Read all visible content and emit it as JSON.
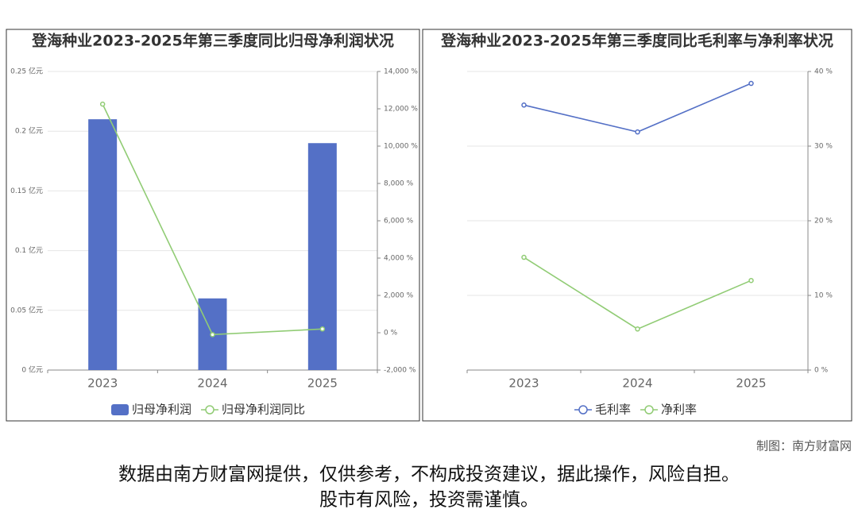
{
  "chart_data": [
    {
      "type": "bar",
      "title": "登海种业2023-2025年第三季度同比归母净利润状况",
      "categories": [
        "2023",
        "2024",
        "2025"
      ],
      "series": [
        {
          "name": "归母净利润",
          "type": "bar",
          "color": "#5470c6",
          "values": [
            0.21,
            0.06,
            0.19
          ]
        },
        {
          "name": "归母净利润同比",
          "type": "line",
          "axis": "y2",
          "color": "#91cc75",
          "values": [
            12250,
            -100,
            200
          ]
        }
      ],
      "ylim": [
        0,
        0.25
      ],
      "yticks": [
        {
          "value": 0,
          "label": "0 亿元"
        },
        {
          "value": 0.05,
          "label": "0.05 亿元"
        },
        {
          "value": 0.1,
          "label": "0.1 亿元"
        },
        {
          "value": 0.15,
          "label": "0.15 亿元"
        },
        {
          "value": 0.2,
          "label": "0.2 亿元"
        },
        {
          "value": 0.25,
          "label": "0.25 亿元"
        }
      ],
      "y2lim": [
        -2000,
        14000
      ],
      "y2ticks": [
        {
          "value": -2000,
          "label": "-2,000 %"
        },
        {
          "value": 0,
          "label": "0 %"
        },
        {
          "value": 2000,
          "label": "2,000 %"
        },
        {
          "value": 4000,
          "label": "4,000 %"
        },
        {
          "value": 6000,
          "label": "6,000 %"
        },
        {
          "value": 8000,
          "label": "8,000 %"
        },
        {
          "value": 10000,
          "label": "10,000 %"
        },
        {
          "value": 12000,
          "label": "12,000 %"
        },
        {
          "value": 14000,
          "label": "14,000 %"
        }
      ],
      "grid": true,
      "legend": "bottom"
    },
    {
      "type": "line",
      "title": "登海种业2023-2025年第三季度同比毛利率与净利率状况",
      "categories": [
        "2023",
        "2024",
        "2025"
      ],
      "series": [
        {
          "name": "毛利率",
          "type": "line",
          "color": "#5470c6",
          "values": [
            35.5,
            31.9,
            38.4
          ]
        },
        {
          "name": "净利率",
          "type": "line",
          "color": "#91cc75",
          "values": [
            15.1,
            5.5,
            12.0
          ]
        }
      ],
      "ylim": [
        0,
        40
      ],
      "yticks": [
        {
          "value": 0,
          "label": "0 %"
        },
        {
          "value": 10,
          "label": "10 %"
        },
        {
          "value": 20,
          "label": "20 %"
        },
        {
          "value": 30,
          "label": "30 %"
        },
        {
          "value": 40,
          "label": "40 %"
        }
      ],
      "y_axis_position": "right",
      "grid": true,
      "legend": "bottom"
    }
  ],
  "credit": "制图：南方财富网",
  "disclaimer": [
    "数据由南方财富网提供，仅供参考，不构成投资建议，据此操作，风险自担。",
    "股市有风险，投资需谨慎。"
  ]
}
